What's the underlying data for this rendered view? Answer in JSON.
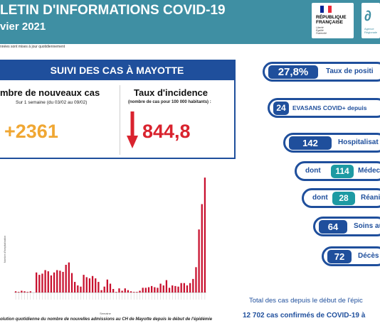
{
  "header": {
    "title": "LETIN D'INFORMATIONS COVID-19",
    "subtitle": "vier 2021",
    "note": "nnées sont mises à jour quotidiennement",
    "republique": [
      "RÉPUBLIQUE",
      "FRANÇAISE"
    ],
    "motto": [
      "Liberté",
      "Égalité",
      "Fraternité"
    ],
    "ars_text": [
      "Agence",
      "Régionale"
    ],
    "colors": {
      "header_bg": "#3f8fa3",
      "primary": "#1f4f9c",
      "teal": "#1d9aa3",
      "orange": "#f0a733",
      "red": "#d9232e"
    }
  },
  "suivi": {
    "title": "SUIVI DES CAS À MAYOTTE",
    "nouveaux_cas": {
      "label": "mbre de nouveaux cas",
      "sub": "Sur 1 semaine (du 03/02 au 09/02)",
      "value": "+2361"
    },
    "incidence": {
      "label": "Taux d'incidence",
      "sub": "(nombre de cas pour 100 000 habitants) :",
      "value": "844,8",
      "arrow_icon": "down-arrow-icon"
    }
  },
  "chart": {
    "caption": "olution quotidienne du nombre de nouvelles admissions au CH de Mayotte depuis le début de l'épidémie"
  },
  "chart_data": {
    "type": "bar",
    "title": "",
    "xlabel": "Semaine",
    "ylabel": "Nombre d'hospitalisation",
    "ylim": [
      0,
      200
    ],
    "values": [
      2,
      1,
      3,
      2,
      1,
      2,
      0,
      34,
      30,
      32,
      38,
      36,
      29,
      34,
      38,
      37,
      35,
      47,
      51,
      33,
      18,
      12,
      10,
      30,
      26,
      24,
      28,
      24,
      18,
      4,
      10,
      22,
      15,
      6,
      1,
      7,
      3,
      7,
      4,
      2,
      1,
      1,
      3,
      8,
      8,
      9,
      11,
      9,
      8,
      15,
      12,
      21,
      8,
      12,
      11,
      10,
      16,
      16,
      12,
      16,
      23,
      43,
      107,
      150,
      195
    ]
  },
  "stats": {
    "positivite": {
      "value": "27,8%",
      "label": "Taux de positi"
    },
    "evasans": {
      "value": "24",
      "label": "EVASANS COVID+ depuis"
    },
    "hospitalisations": {
      "value": "142",
      "label": "Hospitalisat"
    },
    "medecine": {
      "prefix": "dont",
      "value": "114",
      "label": "Médec"
    },
    "reanimation": {
      "prefix": "dont",
      "value": "28",
      "label": "Réani"
    },
    "soins": {
      "value": "64",
      "label": "Soins au"
    },
    "deces": {
      "value": "72",
      "label": "Décès"
    }
  },
  "total": {
    "line1": "Total des cas depuis le début de l'épic",
    "line2_value": "12 702",
    "line2_text": "cas confirmés de COVID-19 à"
  }
}
